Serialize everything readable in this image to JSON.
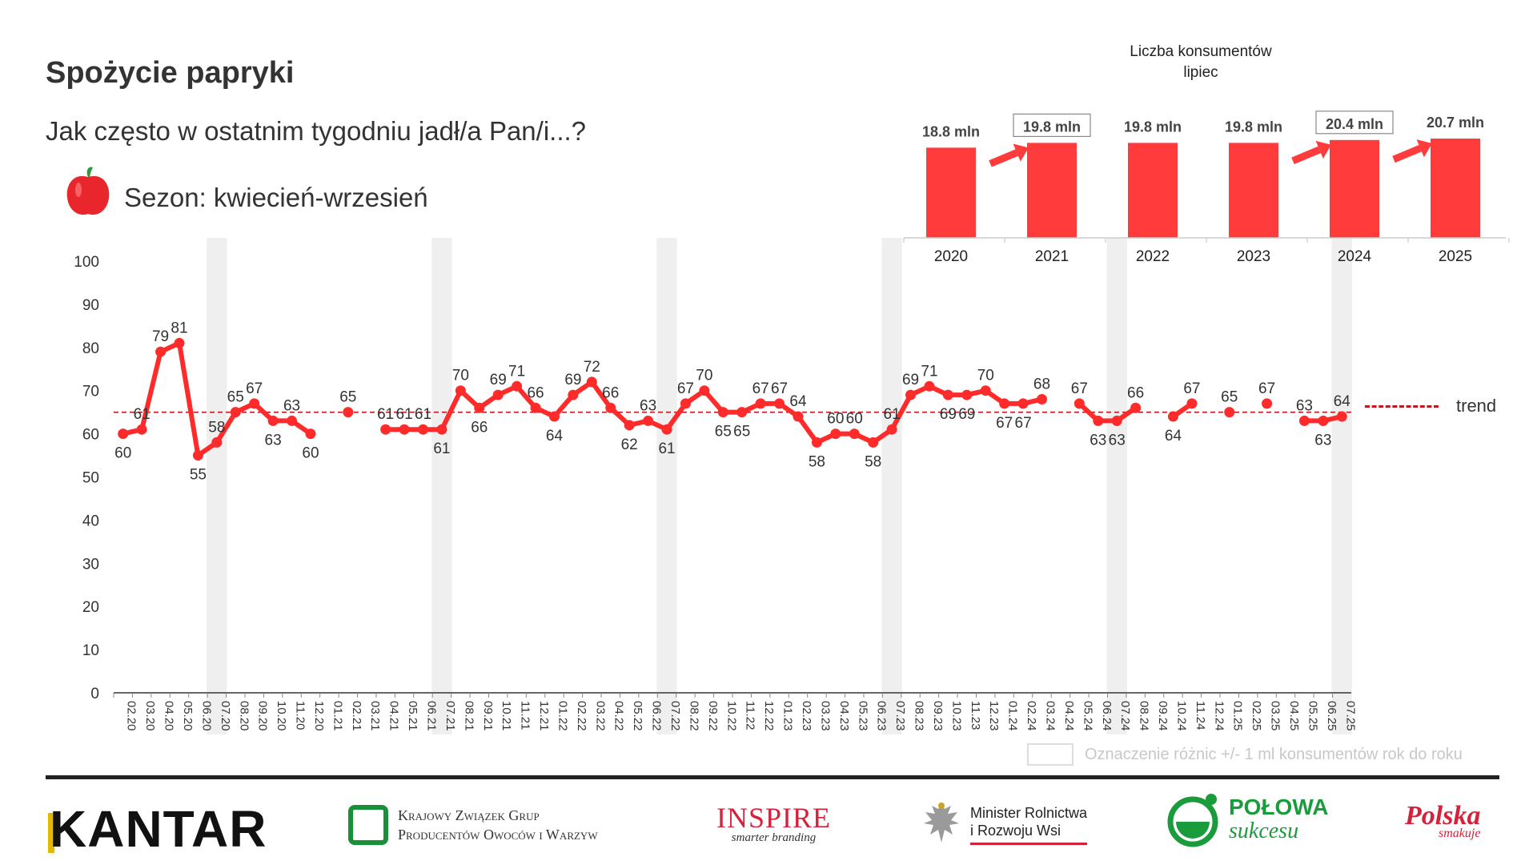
{
  "header": {
    "title": "Spożycie papryki",
    "subtitle": "Jak często w ostatnim tygodniu jadł/a Pan/i...?",
    "season": "Sezon: kwiecień-wrzesień"
  },
  "colors": {
    "series": "#ff2a2a",
    "trend": "#c0181f",
    "bar": "#ff3b3b",
    "arrow": "#ff3b3b",
    "shading": "#efefef"
  },
  "chart_data": [
    {
      "type": "line",
      "title": "",
      "xlabel": "",
      "ylabel": "",
      "ylim": [
        0,
        100
      ],
      "yticks": [
        0,
        10,
        20,
        30,
        40,
        50,
        60,
        70,
        80,
        90,
        100
      ],
      "grid": false,
      "trend": {
        "label": "trend",
        "value": 65
      },
      "x": [
        "02.20",
        "03.20",
        "04.20",
        "05.20",
        "06.20",
        "07.20",
        "08.20",
        "09.20",
        "10.20",
        "11.20",
        "12.20",
        "01.21",
        "02.21",
        "03.21",
        "04.21",
        "05.21",
        "06.21",
        "07.21",
        "08.21",
        "09.21",
        "10.21",
        "11.21",
        "12.21",
        "01.22",
        "02.22",
        "03.22",
        "04.22",
        "05.22",
        "06.22",
        "07.22",
        "08.22",
        "09.22",
        "10.22",
        "11.22",
        "12.22",
        "01.23",
        "02.23",
        "03.23",
        "04.23",
        "05.23",
        "06.23",
        "07.23",
        "08.23",
        "09.23",
        "10.23",
        "11.23",
        "12.23",
        "01.24",
        "02.24",
        "03.24",
        "04.24",
        "05.24",
        "06.24",
        "07.24",
        "08.24",
        "09.24",
        "10.24",
        "11.24",
        "12.24",
        "01.25",
        "02.25",
        "03.25",
        "04.25",
        "05.25",
        "06.25",
        "07.25"
      ],
      "series": [
        {
          "values": [
            60,
            61,
            79,
            81,
            55,
            58,
            65,
            67,
            63,
            63,
            60,
            null,
            65,
            null,
            61,
            61,
            61,
            61,
            70,
            66,
            69,
            71,
            66,
            64,
            69,
            72,
            66,
            62,
            63,
            61,
            67,
            70,
            65,
            65,
            67,
            67,
            64,
            58,
            60,
            60,
            58,
            61,
            69,
            71,
            69,
            69,
            70,
            67,
            67,
            68,
            null,
            67,
            63,
            63,
            66,
            null,
            64,
            67,
            null,
            65,
            null,
            67,
            null,
            63,
            63,
            64
          ],
          "labels": [
            "60",
            "61",
            "79",
            "81",
            "55",
            "58",
            "65",
            "67",
            "63",
            "63",
            "60",
            "",
            "65",
            "",
            "61",
            "61",
            "61",
            "61",
            "70",
            "66",
            "69",
            "71",
            "66",
            "64",
            "69",
            "72",
            "66",
            "62",
            "63",
            "61",
            "67",
            "70",
            "65",
            "65",
            "67",
            "67",
            "64",
            "58",
            "60",
            "60",
            "58",
            "61",
            "69",
            "71",
            "69",
            "69",
            "70",
            "67",
            "67",
            "68",
            "",
            "67",
            "63",
            "63",
            "66",
            "",
            "64",
            "67",
            "",
            "65",
            "",
            "67",
            "",
            "63",
            "63",
            "64"
          ]
        }
      ],
      "highlighted_months": [
        "07.20",
        "07.21",
        "07.22",
        "07.23",
        "07.24",
        "07.25"
      ]
    },
    {
      "type": "bar",
      "title": "Liczba konsumentów",
      "subtitle": "lipiec",
      "categories": [
        "2020",
        "2021",
        "2022",
        "2023",
        "2024",
        "2025"
      ],
      "values": [
        18.8,
        19.8,
        19.8,
        19.8,
        20.4,
        20.7
      ],
      "labels": [
        "18.8  mln",
        "19.8  mln",
        "19.8  mln",
        "19.8  mln",
        "20.4  mln",
        "20.7  mln"
      ],
      "boxed": [
        false,
        true,
        false,
        false,
        true,
        false
      ],
      "arrows_into": [
        "2021",
        "2024",
        "2025"
      ]
    }
  ],
  "legend_note": "Oznaczenie różnic +/- 1 ml konsumentów rok do roku",
  "logos": {
    "kantar": "KANTAR",
    "kzg_line1": "Krajowy Związek Grup",
    "kzg_line2": "Producentów Owoców i Warzyw",
    "inspire": "INSPIRE",
    "inspire_sub": "smarter branding",
    "minister_line1": "Minister Rolnictwa",
    "minister_line2": "i Rozwoju Wsi",
    "polowa": "POŁOWA",
    "polowa_sub": "sukcesu",
    "polska": "Polska",
    "polska_sub": "smakuje"
  }
}
